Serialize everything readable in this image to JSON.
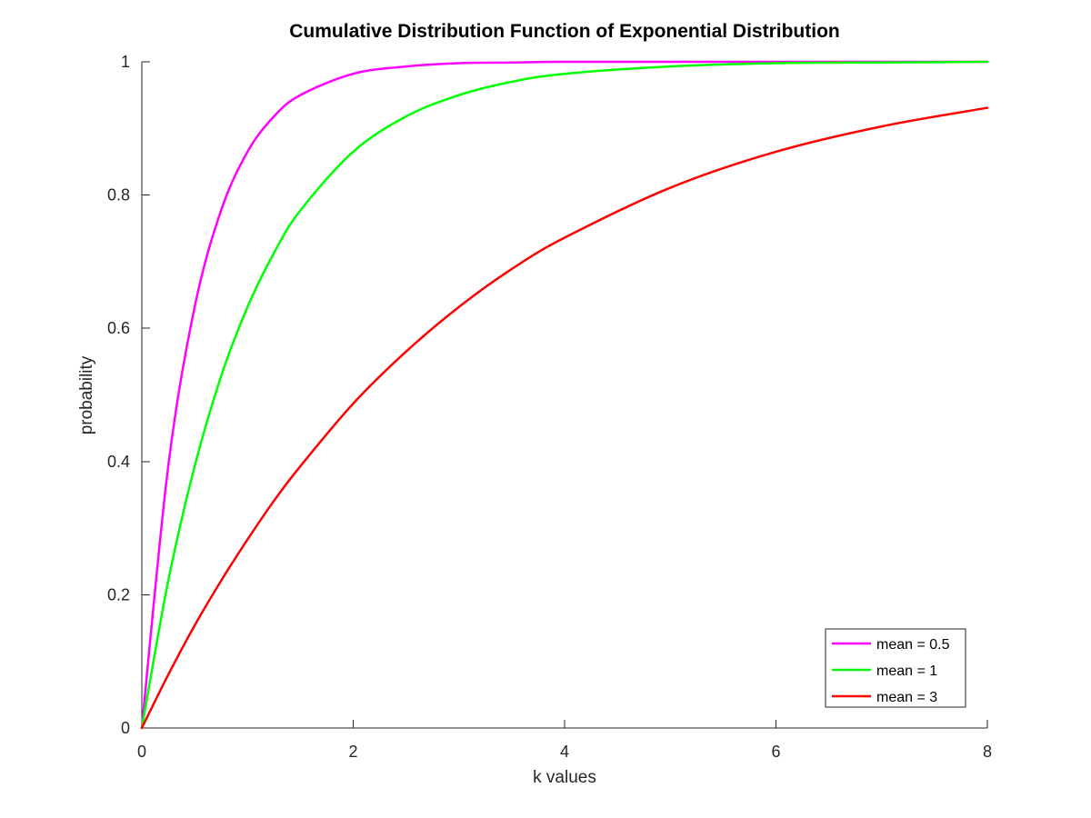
{
  "chart_data": {
    "type": "line",
    "title": "Cumulative Distribution Function of Exponential Distribution",
    "xlabel": "k values",
    "ylabel": "probability",
    "xlim": [
      0,
      8
    ],
    "ylim": [
      0,
      1
    ],
    "x_ticks": [
      0,
      2,
      4,
      6,
      8
    ],
    "x_tick_labels": [
      "0",
      "2",
      "4",
      "6",
      "8"
    ],
    "y_ticks": [
      0,
      0.2,
      0.4,
      0.6,
      0.8,
      1
    ],
    "y_tick_labels": [
      "0",
      "0.2",
      "0.4",
      "0.6",
      "0.8",
      "1"
    ],
    "grid": false,
    "legend_position": "bottom-right",
    "x": [
      0,
      0.25,
      0.5,
      0.75,
      1,
      1.25,
      1.5,
      2,
      2.5,
      3,
      3.5,
      4,
      5,
      6,
      7,
      8
    ],
    "series": [
      {
        "name": "mean = 0.5",
        "color": "#ff00ff",
        "values": [
          0,
          0.393,
          0.632,
          0.777,
          0.865,
          0.918,
          0.95,
          0.982,
          0.993,
          0.998,
          0.999,
          1.0,
          1.0,
          1.0,
          1.0,
          1.0
        ]
      },
      {
        "name": "mean = 1",
        "color": "#00ff00",
        "values": [
          0,
          0.221,
          0.393,
          0.528,
          0.632,
          0.713,
          0.777,
          0.865,
          0.918,
          0.95,
          0.97,
          0.982,
          0.993,
          0.998,
          0.999,
          1.0
        ]
      },
      {
        "name": "mean = 3",
        "color": "#ff0000",
        "values": [
          0,
          0.08,
          0.154,
          0.221,
          0.283,
          0.341,
          0.393,
          0.487,
          0.565,
          0.632,
          0.689,
          0.736,
          0.811,
          0.865,
          0.903,
          0.931
        ]
      }
    ]
  }
}
